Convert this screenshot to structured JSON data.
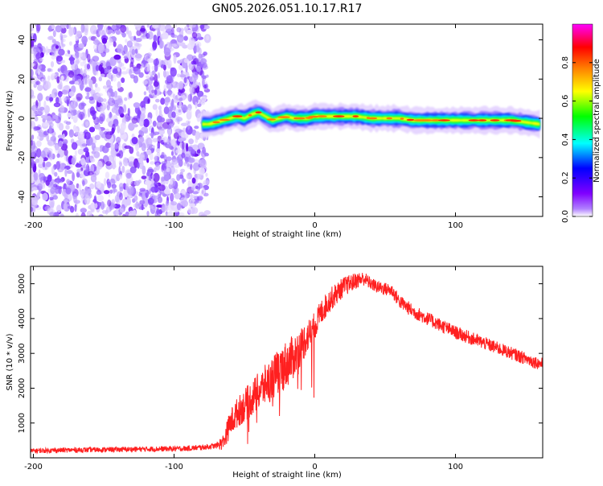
{
  "page": {
    "title": "GN05.2026.051.10.17.R17"
  },
  "chart_data": [
    {
      "type": "heatmap",
      "name": "spectrogram",
      "xlabel": "Height of straight line (km)",
      "ylabel": "Frequency (Hz)",
      "xlim": [
        -202,
        162
      ],
      "ylim": [
        -50,
        48
      ],
      "xticks": [
        -200,
        -100,
        0,
        100
      ],
      "xtick_labels": [
        "-200",
        "-100",
        "0",
        "100"
      ],
      "yticks": [
        -40,
        -20,
        0,
        20,
        40
      ],
      "ytick_labels": [
        "-40",
        "-20",
        "0",
        "20",
        "40"
      ],
      "noise_region_x": [
        -202,
        -75
      ],
      "signal_region_x": [
        -80,
        162
      ],
      "ridge": {
        "x": [
          -80,
          -75,
          -70,
          -65,
          -60,
          -55,
          -50,
          -45,
          -40,
          -35,
          -30,
          -25,
          -20,
          -15,
          -10,
          -5,
          0,
          5,
          10,
          20,
          30,
          40,
          50,
          60,
          70,
          80,
          90,
          100,
          110,
          120,
          130,
          140,
          150,
          160
        ],
        "freq": [
          -3,
          -3,
          -2,
          -1,
          0,
          1,
          0,
          2,
          3,
          1,
          -1,
          0,
          1,
          0,
          0,
          0,
          1,
          1,
          1,
          1,
          1,
          0,
          0,
          0,
          -1,
          -1,
          -1,
          -1,
          -1,
          -1,
          -1,
          -1,
          -2,
          -3
        ]
      },
      "colorbar": {
        "label": "Normalized spectral amplitude",
        "ticks": [
          0.0,
          0.2,
          0.4,
          0.6,
          0.8
        ],
        "tick_labels": [
          "0.0",
          "0.2",
          "0.4",
          "0.6",
          "0.8"
        ],
        "range": [
          0,
          1
        ],
        "colors": [
          "#ffffff",
          "#8000ff",
          "#0000ff",
          "#00ffff",
          "#00ff00",
          "#ffff00",
          "#ff8000",
          "#ff0000",
          "#ff00ff"
        ]
      }
    },
    {
      "type": "line",
      "name": "snr",
      "xlabel": "Height of straight line (km)",
      "ylabel": "SNR (10 * v/v)",
      "xlim": [
        -202,
        162
      ],
      "ylim": [
        0,
        5500
      ],
      "xticks": [
        -200,
        -100,
        0,
        100
      ],
      "xtick_labels": [
        "-200",
        "-100",
        "0",
        "100"
      ],
      "yticks": [
        1000,
        2000,
        3000,
        4000,
        5000
      ],
      "ytick_labels": [
        "1000",
        "2000",
        "3000",
        "4000",
        "5000"
      ],
      "color": "#ff2020",
      "envelope": {
        "x": [
          -202,
          -180,
          -160,
          -140,
          -120,
          -100,
          -90,
          -80,
          -70,
          -65,
          -60,
          -55,
          -50,
          -45,
          -40,
          -35,
          -30,
          -25,
          -20,
          -15,
          -10,
          -5,
          0,
          5,
          10,
          15,
          20,
          25,
          30,
          35,
          40,
          45,
          50,
          55,
          60,
          70,
          80,
          90,
          100,
          110,
          120,
          130,
          140,
          150,
          160
        ],
        "y": [
          200,
          220,
          230,
          240,
          250,
          260,
          270,
          300,
          350,
          450,
          1000,
          1300,
          1500,
          1700,
          1900,
          2100,
          2300,
          2500,
          2700,
          2900,
          3200,
          3500,
          3800,
          4200,
          4500,
          4700,
          4900,
          5000,
          5100,
          5150,
          5000,
          4900,
          4850,
          4800,
          4500,
          4200,
          4000,
          3800,
          3600,
          3450,
          3300,
          3150,
          3000,
          2850,
          2700
        ]
      },
      "noise_amplitude": {
        "x": [
          -202,
          -70,
          -60,
          -20,
          0,
          40,
          60,
          160
        ],
        "y": [
          70,
          80,
          400,
          700,
          400,
          180,
          200,
          180
        ]
      }
    }
  ]
}
